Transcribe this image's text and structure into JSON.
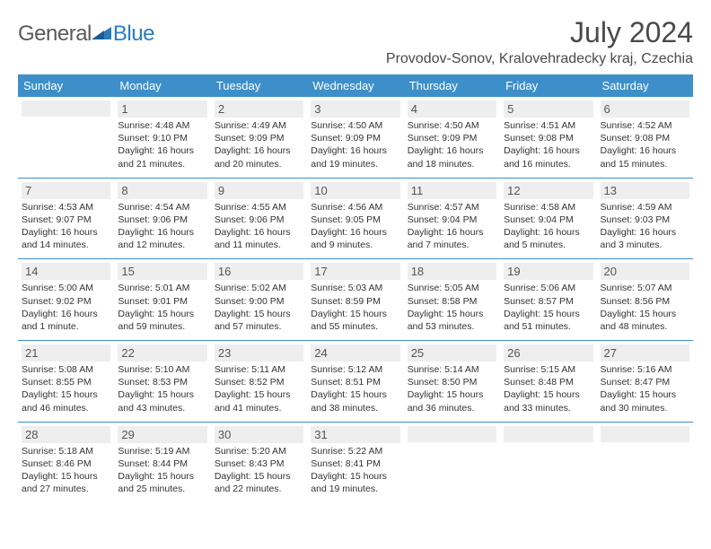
{
  "logo": {
    "part1": "General",
    "part2": "Blue"
  },
  "title": "July 2024",
  "location": "Provodov-Sonov, Kralovehradecky kraj, Czechia",
  "colors": {
    "header_bg": "#3d8fc9",
    "header_text": "#ffffff",
    "daynum_bg": "#eeeeee",
    "border": "#3d8fc9",
    "text": "#333333",
    "logo_gray": "#5a5a5a",
    "logo_blue": "#2b7bbf"
  },
  "weekdays": [
    "Sunday",
    "Monday",
    "Tuesday",
    "Wednesday",
    "Thursday",
    "Friday",
    "Saturday"
  ],
  "weeks": [
    [
      {
        "n": "",
        "sr": "",
        "ss": "",
        "dl": ""
      },
      {
        "n": "1",
        "sr": "Sunrise: 4:48 AM",
        "ss": "Sunset: 9:10 PM",
        "dl": "Daylight: 16 hours and 21 minutes."
      },
      {
        "n": "2",
        "sr": "Sunrise: 4:49 AM",
        "ss": "Sunset: 9:09 PM",
        "dl": "Daylight: 16 hours and 20 minutes."
      },
      {
        "n": "3",
        "sr": "Sunrise: 4:50 AM",
        "ss": "Sunset: 9:09 PM",
        "dl": "Daylight: 16 hours and 19 minutes."
      },
      {
        "n": "4",
        "sr": "Sunrise: 4:50 AM",
        "ss": "Sunset: 9:09 PM",
        "dl": "Daylight: 16 hours and 18 minutes."
      },
      {
        "n": "5",
        "sr": "Sunrise: 4:51 AM",
        "ss": "Sunset: 9:08 PM",
        "dl": "Daylight: 16 hours and 16 minutes."
      },
      {
        "n": "6",
        "sr": "Sunrise: 4:52 AM",
        "ss": "Sunset: 9:08 PM",
        "dl": "Daylight: 16 hours and 15 minutes."
      }
    ],
    [
      {
        "n": "7",
        "sr": "Sunrise: 4:53 AM",
        "ss": "Sunset: 9:07 PM",
        "dl": "Daylight: 16 hours and 14 minutes."
      },
      {
        "n": "8",
        "sr": "Sunrise: 4:54 AM",
        "ss": "Sunset: 9:06 PM",
        "dl": "Daylight: 16 hours and 12 minutes."
      },
      {
        "n": "9",
        "sr": "Sunrise: 4:55 AM",
        "ss": "Sunset: 9:06 PM",
        "dl": "Daylight: 16 hours and 11 minutes."
      },
      {
        "n": "10",
        "sr": "Sunrise: 4:56 AM",
        "ss": "Sunset: 9:05 PM",
        "dl": "Daylight: 16 hours and 9 minutes."
      },
      {
        "n": "11",
        "sr": "Sunrise: 4:57 AM",
        "ss": "Sunset: 9:04 PM",
        "dl": "Daylight: 16 hours and 7 minutes."
      },
      {
        "n": "12",
        "sr": "Sunrise: 4:58 AM",
        "ss": "Sunset: 9:04 PM",
        "dl": "Daylight: 16 hours and 5 minutes."
      },
      {
        "n": "13",
        "sr": "Sunrise: 4:59 AM",
        "ss": "Sunset: 9:03 PM",
        "dl": "Daylight: 16 hours and 3 minutes."
      }
    ],
    [
      {
        "n": "14",
        "sr": "Sunrise: 5:00 AM",
        "ss": "Sunset: 9:02 PM",
        "dl": "Daylight: 16 hours and 1 minute."
      },
      {
        "n": "15",
        "sr": "Sunrise: 5:01 AM",
        "ss": "Sunset: 9:01 PM",
        "dl": "Daylight: 15 hours and 59 minutes."
      },
      {
        "n": "16",
        "sr": "Sunrise: 5:02 AM",
        "ss": "Sunset: 9:00 PM",
        "dl": "Daylight: 15 hours and 57 minutes."
      },
      {
        "n": "17",
        "sr": "Sunrise: 5:03 AM",
        "ss": "Sunset: 8:59 PM",
        "dl": "Daylight: 15 hours and 55 minutes."
      },
      {
        "n": "18",
        "sr": "Sunrise: 5:05 AM",
        "ss": "Sunset: 8:58 PM",
        "dl": "Daylight: 15 hours and 53 minutes."
      },
      {
        "n": "19",
        "sr": "Sunrise: 5:06 AM",
        "ss": "Sunset: 8:57 PM",
        "dl": "Daylight: 15 hours and 51 minutes."
      },
      {
        "n": "20",
        "sr": "Sunrise: 5:07 AM",
        "ss": "Sunset: 8:56 PM",
        "dl": "Daylight: 15 hours and 48 minutes."
      }
    ],
    [
      {
        "n": "21",
        "sr": "Sunrise: 5:08 AM",
        "ss": "Sunset: 8:55 PM",
        "dl": "Daylight: 15 hours and 46 minutes."
      },
      {
        "n": "22",
        "sr": "Sunrise: 5:10 AM",
        "ss": "Sunset: 8:53 PM",
        "dl": "Daylight: 15 hours and 43 minutes."
      },
      {
        "n": "23",
        "sr": "Sunrise: 5:11 AM",
        "ss": "Sunset: 8:52 PM",
        "dl": "Daylight: 15 hours and 41 minutes."
      },
      {
        "n": "24",
        "sr": "Sunrise: 5:12 AM",
        "ss": "Sunset: 8:51 PM",
        "dl": "Daylight: 15 hours and 38 minutes."
      },
      {
        "n": "25",
        "sr": "Sunrise: 5:14 AM",
        "ss": "Sunset: 8:50 PM",
        "dl": "Daylight: 15 hours and 36 minutes."
      },
      {
        "n": "26",
        "sr": "Sunrise: 5:15 AM",
        "ss": "Sunset: 8:48 PM",
        "dl": "Daylight: 15 hours and 33 minutes."
      },
      {
        "n": "27",
        "sr": "Sunrise: 5:16 AM",
        "ss": "Sunset: 8:47 PM",
        "dl": "Daylight: 15 hours and 30 minutes."
      }
    ],
    [
      {
        "n": "28",
        "sr": "Sunrise: 5:18 AM",
        "ss": "Sunset: 8:46 PM",
        "dl": "Daylight: 15 hours and 27 minutes."
      },
      {
        "n": "29",
        "sr": "Sunrise: 5:19 AM",
        "ss": "Sunset: 8:44 PM",
        "dl": "Daylight: 15 hours and 25 minutes."
      },
      {
        "n": "30",
        "sr": "Sunrise: 5:20 AM",
        "ss": "Sunset: 8:43 PM",
        "dl": "Daylight: 15 hours and 22 minutes."
      },
      {
        "n": "31",
        "sr": "Sunrise: 5:22 AM",
        "ss": "Sunset: 8:41 PM",
        "dl": "Daylight: 15 hours and 19 minutes."
      },
      {
        "n": "",
        "sr": "",
        "ss": "",
        "dl": ""
      },
      {
        "n": "",
        "sr": "",
        "ss": "",
        "dl": ""
      },
      {
        "n": "",
        "sr": "",
        "ss": "",
        "dl": ""
      }
    ]
  ]
}
